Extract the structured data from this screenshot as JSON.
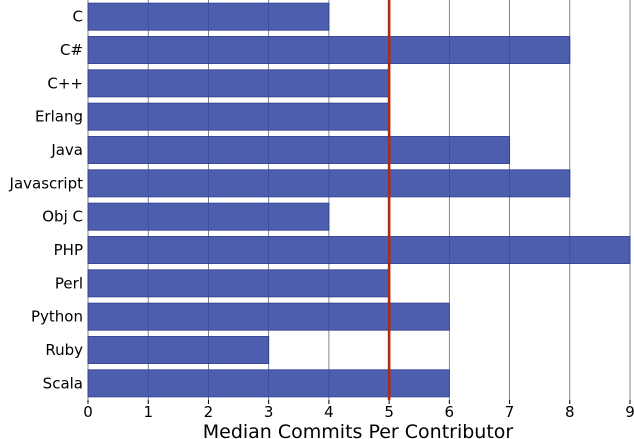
{
  "chart_data": {
    "type": "bar",
    "orientation": "horizontal",
    "categories": [
      "C",
      "C#",
      "C++",
      "Erlang",
      "Java",
      "Javascript",
      "Obj C",
      "PHP",
      "Perl",
      "Python",
      "Ruby",
      "Scala"
    ],
    "values": [
      4,
      8,
      5,
      5,
      7,
      8,
      4,
      9,
      5,
      6,
      3,
      6
    ],
    "title": "",
    "xlabel": "Median Commits Per Contributor",
    "ylabel": "",
    "xlim": [
      0,
      9
    ],
    "xticks": [
      "0",
      "1",
      "2",
      "3",
      "4",
      "5",
      "6",
      "7",
      "8",
      "9"
    ],
    "reference_line": 5,
    "grid": "vertical",
    "legend": "none",
    "colors": {
      "bar": "#4455aa",
      "bar_edge": "#3a4a98",
      "reference_line": "#b22a0e",
      "grid": "#8a8a8a"
    }
  }
}
